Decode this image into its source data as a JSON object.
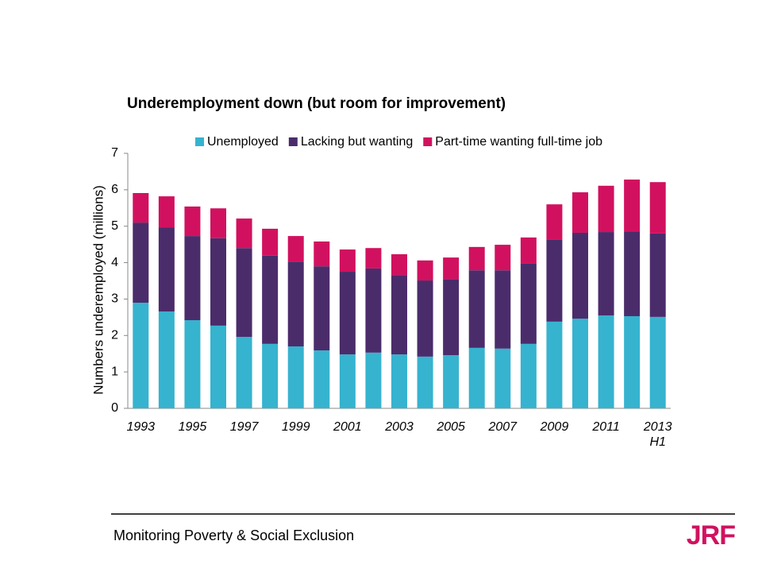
{
  "chart_data": {
    "type": "stacked-bar",
    "title": "Underemployment down (but room for improvement)",
    "y_label": "Numbers underemployed (millions)",
    "categories": [
      "1993",
      null,
      "1995",
      null,
      "1997",
      null,
      "1999",
      null,
      "2001",
      null,
      "2003",
      null,
      "2005",
      null,
      "2007",
      null,
      "2009",
      null,
      "2011",
      null,
      "2013 H1"
    ],
    "series": [
      {
        "name": "Unemployed",
        "color": "#36b3cf",
        "values": [
          2.9,
          2.66,
          2.42,
          2.27,
          1.96,
          1.77,
          1.7,
          1.59,
          1.48,
          1.53,
          1.48,
          1.42,
          1.46,
          1.66,
          1.64,
          1.77,
          2.38,
          2.46,
          2.55,
          2.53,
          2.51
        ]
      },
      {
        "name": "Lacking but wanting",
        "color": "#4b2c6b",
        "values": [
          2.2,
          2.31,
          2.31,
          2.4,
          2.44,
          2.42,
          2.33,
          2.31,
          2.27,
          2.31,
          2.18,
          2.09,
          2.09,
          2.13,
          2.15,
          2.2,
          2.26,
          2.36,
          2.29,
          2.33,
          2.29
        ]
      },
      {
        "name": "Part-time wanting full-time job",
        "color": "#d1115f",
        "values": [
          0.81,
          0.85,
          0.81,
          0.82,
          0.81,
          0.74,
          0.7,
          0.68,
          0.61,
          0.56,
          0.57,
          0.55,
          0.59,
          0.64,
          0.7,
          0.72,
          0.96,
          1.11,
          1.27,
          1.42,
          1.41
        ]
      }
    ],
    "ylim": [
      0,
      7
    ],
    "yticks": [
      0,
      1,
      2,
      3,
      4,
      5,
      6,
      7
    ],
    "legend": "top"
  },
  "footer": {
    "text": "Monitoring Poverty & Social Exclusion",
    "logo": "JRF"
  }
}
